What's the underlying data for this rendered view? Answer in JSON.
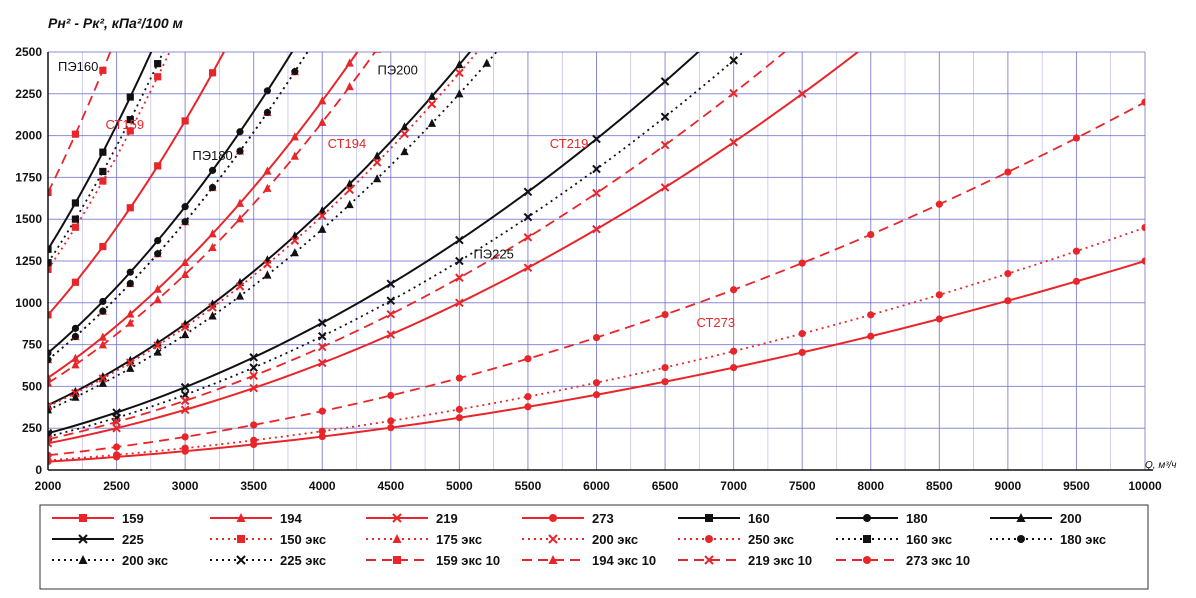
{
  "chart_data": {
    "type": "line",
    "title": "",
    "ylabel": "Pн² - Pк², кПа²/100 м",
    "xlabel": "Q, м³/ч",
    "xlim": [
      2000,
      10000
    ],
    "ylim": [
      0,
      2500
    ],
    "x_ticks": [
      2000,
      2500,
      3000,
      3500,
      4000,
      4500,
      5000,
      5500,
      6000,
      6500,
      7000,
      7500,
      8000,
      8500,
      9000,
      9500,
      10000
    ],
    "y_ticks": [
      0,
      250,
      500,
      750,
      1000,
      1250,
      1500,
      1750,
      2000,
      2250,
      2500
    ],
    "grid": true,
    "legend_position": "bottom",
    "colors": {
      "steel": "#e8262a",
      "pe": "#111111",
      "grid": "#6f6fc8"
    },
    "series": [
      {
        "name": "159",
        "color": "#e8262a",
        "dash": "solid",
        "marker": "square",
        "k": 232
      },
      {
        "name": "194",
        "color": "#e8262a",
        "dash": "solid",
        "marker": "triangle",
        "k": 138
      },
      {
        "name": "219",
        "color": "#e8262a",
        "dash": "solid",
        "marker": "x",
        "k": 40
      },
      {
        "name": "273",
        "color": "#e8262a",
        "dash": "solid",
        "marker": "circle",
        "k": 12.5
      },
      {
        "name": "160",
        "color": "#111111",
        "dash": "solid",
        "marker": "square",
        "k": 330
      },
      {
        "name": "180",
        "color": "#111111",
        "dash": "solid",
        "marker": "circle",
        "k": 175
      },
      {
        "name": "200",
        "color": "#111111",
        "dash": "solid",
        "marker": "triangle",
        "k": 97
      },
      {
        "name": "225",
        "color": "#111111",
        "dash": "solid",
        "marker": "x",
        "k": 55
      },
      {
        "name": "150 экс",
        "color": "#e8262a",
        "dash": "dot",
        "marker": "square",
        "k": 300
      },
      {
        "name": "175 экс",
        "color": "#e8262a",
        "dash": "dot",
        "marker": "triangle",
        "k": 165
      },
      {
        "name": "200 экс",
        "color": "#e8262a",
        "dash": "dot",
        "marker": "x",
        "k": 95
      },
      {
        "name": "250 экс",
        "color": "#e8262a",
        "dash": "dot",
        "marker": "circle",
        "k": 14.5
      },
      {
        "name": "160 экс",
        "color": "#111111",
        "dash": "dot",
        "marker": "square",
        "k": 310
      },
      {
        "name": "180 экс",
        "color": "#111111",
        "dash": "dot",
        "marker": "circle",
        "k": 165
      },
      {
        "name": "200 экс",
        "color": "#111111",
        "dash": "dot",
        "marker": "triangle",
        "k": 90
      },
      {
        "name": "225 экс",
        "color": "#111111",
        "dash": "dot",
        "marker": "x",
        "k": 50
      },
      {
        "name": "159 экс 10",
        "color": "#e8262a",
        "dash": "dash",
        "marker": "square",
        "k": 415
      },
      {
        "name": "194 экс 10",
        "color": "#e8262a",
        "dash": "dash",
        "marker": "triangle",
        "k": 130
      },
      {
        "name": "219 экс 10",
        "color": "#e8262a",
        "dash": "dash",
        "marker": "x",
        "k": 46
      },
      {
        "name": "273 экс 10",
        "color": "#e8262a",
        "dash": "dash",
        "marker": "circle",
        "k": 22
      }
    ],
    "annotations": [
      {
        "text": "ПЭ160",
        "x": 2220,
        "y": 2385,
        "color": "#111111"
      },
      {
        "text": "СТ159",
        "x": 2560,
        "y": 2040,
        "color": "#e8262a"
      },
      {
        "text": "ПЭ180",
        "x": 3200,
        "y": 1855,
        "color": "#111111"
      },
      {
        "text": "СТ194",
        "x": 4180,
        "y": 1925,
        "color": "#e8262a"
      },
      {
        "text": "ПЭ200",
        "x": 4550,
        "y": 2365,
        "color": "#111111"
      },
      {
        "text": "СТ219",
        "x": 5800,
        "y": 1925,
        "color": "#e8262a"
      },
      {
        "text": "ПЭ225",
        "x": 5250,
        "y": 1265,
        "color": "#111111"
      },
      {
        "text": "СТ273",
        "x": 6870,
        "y": 855,
        "color": "#e8262a"
      }
    ]
  }
}
